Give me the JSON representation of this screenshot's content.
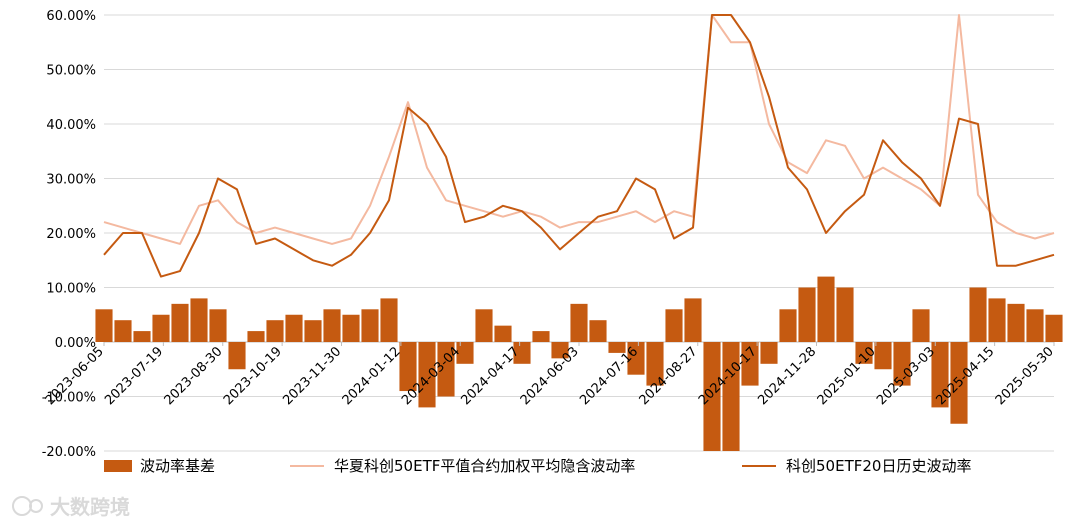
{
  "chart_data": {
    "type": "line",
    "title": "",
    "xlabel": "",
    "ylabel": "",
    "ylim": [
      -0.2,
      0.6
    ],
    "y_ticks": [
      "-20.00%",
      "-10.00%",
      "0.00%",
      "10.00%",
      "20.00%",
      "30.00%",
      "40.00%",
      "50.00%",
      "60.00%"
    ],
    "x_tick_labels": [
      "2023-06-05",
      "2023-07-19",
      "2023-08-30",
      "2023-10-19",
      "2023-11-30",
      "2024-01-12",
      "2024-03-04",
      "2024-04-17",
      "2024-06-03",
      "2024-07-16",
      "2024-08-27",
      "2024-10-17",
      "2024-11-28",
      "2025-01-10",
      "2025-03-03",
      "2025-04-15",
      "2025-05-30"
    ],
    "x": [
      "2023-06-05",
      "2023-06-19",
      "2023-07-03",
      "2023-07-19",
      "2023-08-02",
      "2023-08-16",
      "2023-08-30",
      "2023-09-13",
      "2023-10-02",
      "2023-10-19",
      "2023-11-02",
      "2023-11-16",
      "2023-11-30",
      "2023-12-14",
      "2023-12-28",
      "2024-01-12",
      "2024-01-26",
      "2024-02-09",
      "2024-03-04",
      "2024-03-18",
      "2024-04-01",
      "2024-04-17",
      "2024-05-06",
      "2024-05-20",
      "2024-06-03",
      "2024-06-17",
      "2024-07-01",
      "2024-07-16",
      "2024-07-30",
      "2024-08-13",
      "2024-08-27",
      "2024-09-10",
      "2024-09-30",
      "2024-10-17",
      "2024-10-31",
      "2024-11-14",
      "2024-11-28",
      "2024-12-12",
      "2024-12-26",
      "2025-01-10",
      "2025-01-24",
      "2025-02-14",
      "2025-03-03",
      "2025-03-17",
      "2025-03-31",
      "2025-04-15",
      "2025-04-29",
      "2025-05-16",
      "2025-05-30",
      "2025-06-13",
      "2025-06-27"
    ],
    "series": [
      {
        "name": "波动率基差",
        "type": "bar",
        "color": "#c55a11",
        "values": [
          0.06,
          0.04,
          0.02,
          0.05,
          0.07,
          0.08,
          0.06,
          -0.05,
          0.02,
          0.04,
          0.05,
          0.04,
          0.06,
          0.05,
          0.06,
          0.08,
          -0.09,
          -0.12,
          -0.1,
          -0.04,
          0.06,
          0.03,
          -0.04,
          0.02,
          -0.03,
          0.07,
          0.04,
          -0.02,
          -0.06,
          -0.08,
          0.06,
          0.08,
          -0.2,
          -0.2,
          -0.08,
          -0.04,
          0.06,
          0.1,
          0.12,
          0.1,
          -0.04,
          -0.05,
          -0.08,
          0.06,
          -0.12,
          -0.15,
          0.1,
          0.08,
          0.07,
          0.06,
          0.05
        ]
      },
      {
        "name": "华夏科创50ETF平值合约加权平均隐含波动率",
        "type": "line",
        "color": "#f4b9a0",
        "values": [
          0.22,
          0.21,
          0.2,
          0.19,
          0.18,
          0.25,
          0.26,
          0.22,
          0.2,
          0.21,
          0.2,
          0.19,
          0.18,
          0.19,
          0.25,
          0.34,
          0.44,
          0.32,
          0.26,
          0.25,
          0.24,
          0.23,
          0.24,
          0.23,
          0.21,
          0.22,
          0.22,
          0.23,
          0.24,
          0.22,
          0.24,
          0.23,
          0.6,
          0.55,
          0.55,
          0.4,
          0.33,
          0.31,
          0.37,
          0.36,
          0.3,
          0.32,
          0.3,
          0.28,
          0.25,
          0.6,
          0.27,
          0.22,
          0.2,
          0.19,
          0.2
        ]
      },
      {
        "name": "科创50ETF20日历史波动率",
        "type": "line",
        "color": "#c55a11",
        "values": [
          0.16,
          0.2,
          0.2,
          0.12,
          0.13,
          0.2,
          0.3,
          0.28,
          0.18,
          0.19,
          0.17,
          0.15,
          0.14,
          0.16,
          0.2,
          0.26,
          0.43,
          0.4,
          0.34,
          0.22,
          0.23,
          0.25,
          0.24,
          0.21,
          0.17,
          0.2,
          0.23,
          0.24,
          0.3,
          0.28,
          0.19,
          0.21,
          0.6,
          0.6,
          0.55,
          0.45,
          0.32,
          0.28,
          0.2,
          0.24,
          0.27,
          0.37,
          0.33,
          0.3,
          0.25,
          0.41,
          0.4,
          0.14,
          0.14,
          0.15,
          0.16
        ]
      }
    ],
    "grid": "horizontal",
    "legend_position": "bottom",
    "watermark": "大数跨境"
  }
}
